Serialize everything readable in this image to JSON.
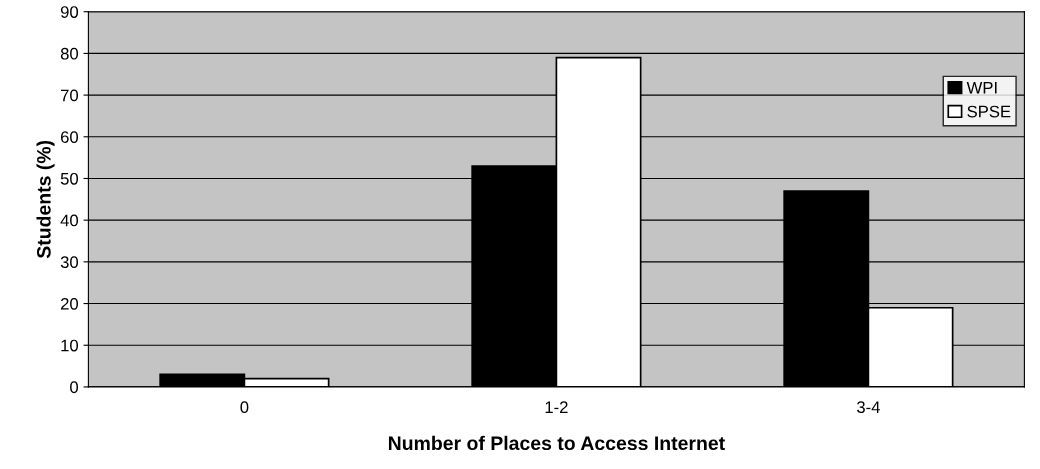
{
  "chart_data": {
    "type": "bar",
    "xlabel": "Number of Places to Access Internet",
    "ylabel": "Students (%)",
    "categories": [
      "0",
      "1-2",
      "3-4"
    ],
    "series": [
      {
        "name": "WPI",
        "color": "#000000",
        "values": [
          3,
          53,
          47
        ]
      },
      {
        "name": "SPSE",
        "color": "#ffffff",
        "values": [
          2,
          79,
          19
        ]
      }
    ],
    "ylim": [
      0,
      90
    ],
    "yticks": [
      0,
      10,
      20,
      30,
      40,
      50,
      60,
      70,
      80,
      90
    ],
    "grid": "y",
    "legend": "top right"
  }
}
